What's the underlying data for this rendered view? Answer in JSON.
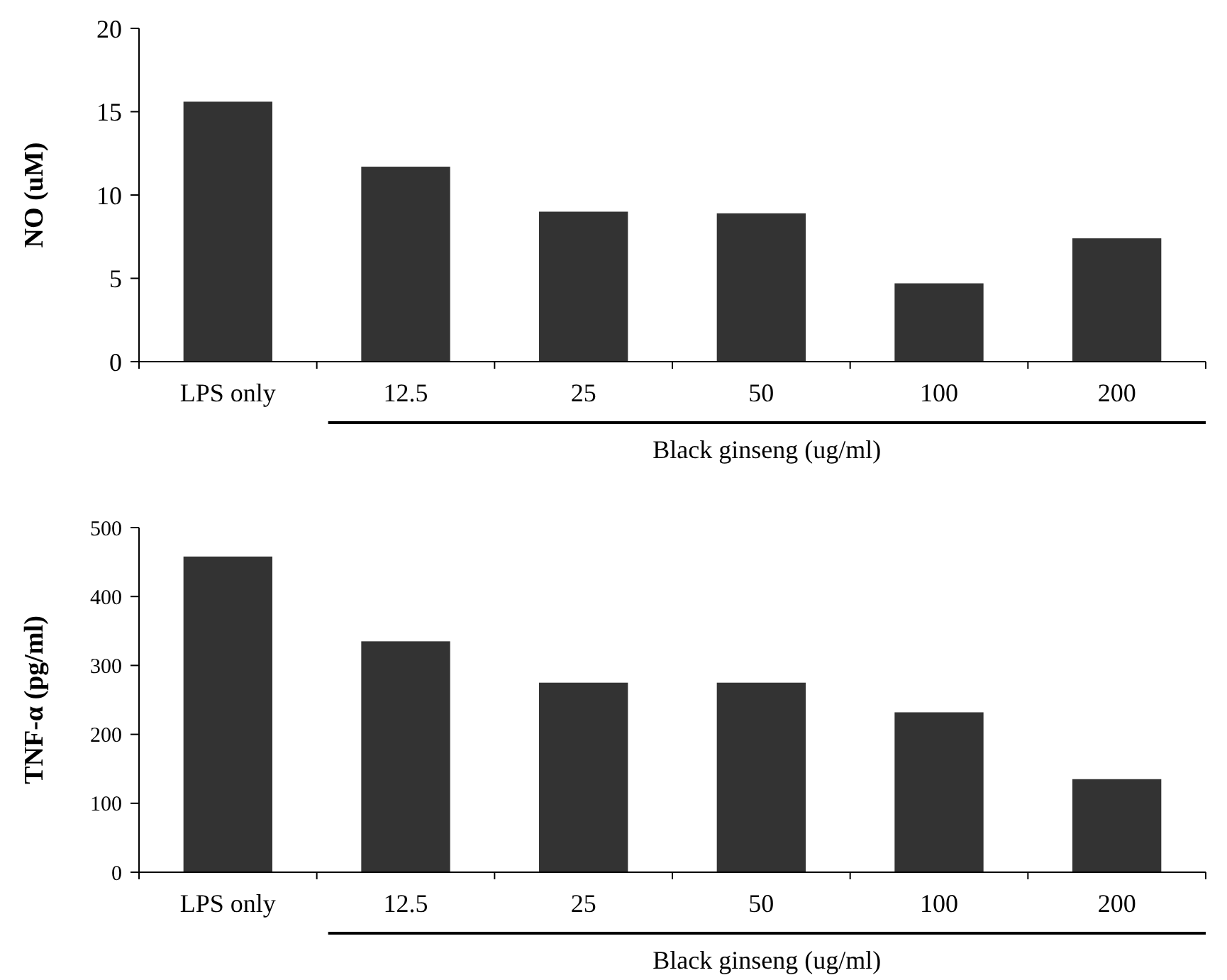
{
  "chart_data": [
    {
      "type": "bar",
      "ylabel": "NO (uM)",
      "xlabel": "Black ginseng (ug/ml)",
      "categories": [
        "LPS only",
        "12.5",
        "25",
        "50",
        "100",
        "200"
      ],
      "values": [
        15.6,
        11.7,
        9.0,
        8.9,
        4.7,
        7.4
      ],
      "color": "#333333",
      "ylim": [
        0,
        20
      ],
      "yticks": [
        0,
        5,
        10,
        15,
        20
      ],
      "grid": false
    },
    {
      "type": "bar",
      "ylabel": "TNF-α (pg/ml)",
      "xlabel": "Black ginseng (ug/ml)",
      "categories": [
        "LPS only",
        "12.5",
        "25",
        "50",
        "100",
        "200"
      ],
      "values": [
        458,
        335,
        275,
        275,
        232,
        135
      ],
      "color": "#333333",
      "ylim": [
        0,
        500
      ],
      "yticks": [
        0,
        100,
        200,
        300,
        400,
        500
      ],
      "grid": false
    }
  ]
}
